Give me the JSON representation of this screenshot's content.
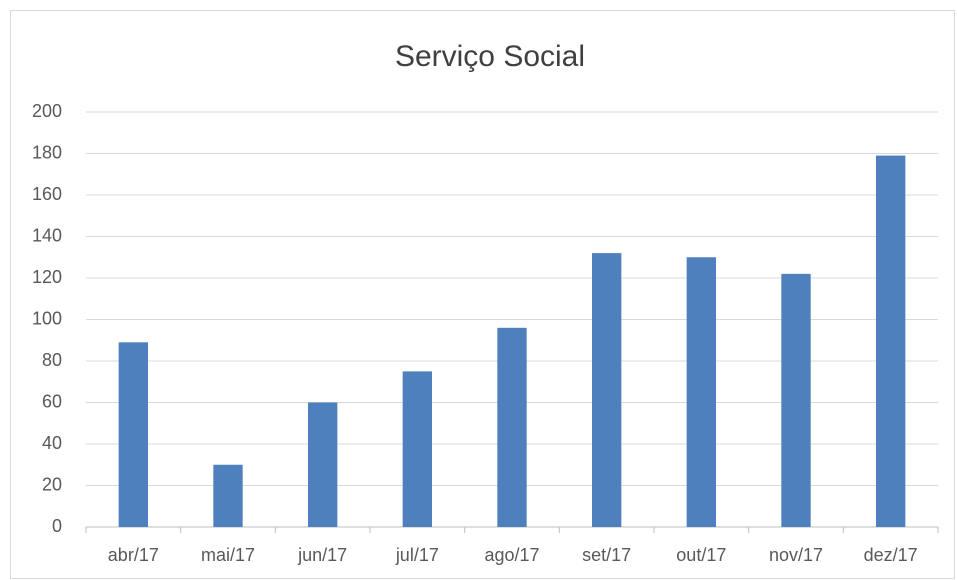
{
  "chart_data": {
    "type": "bar",
    "title": "Serviço Social",
    "categories": [
      "abr/17",
      "mai/17",
      "jun/17",
      "jul/17",
      "ago/17",
      "set/17",
      "out/17",
      "nov/17",
      "dez/17"
    ],
    "values": [
      89,
      30,
      60,
      75,
      96,
      132,
      130,
      122,
      179
    ],
    "color": "#4e80bd",
    "ylim": [
      0,
      200
    ],
    "yticks": [
      0,
      20,
      40,
      60,
      80,
      100,
      120,
      140,
      160,
      180,
      200
    ],
    "grid": true
  }
}
